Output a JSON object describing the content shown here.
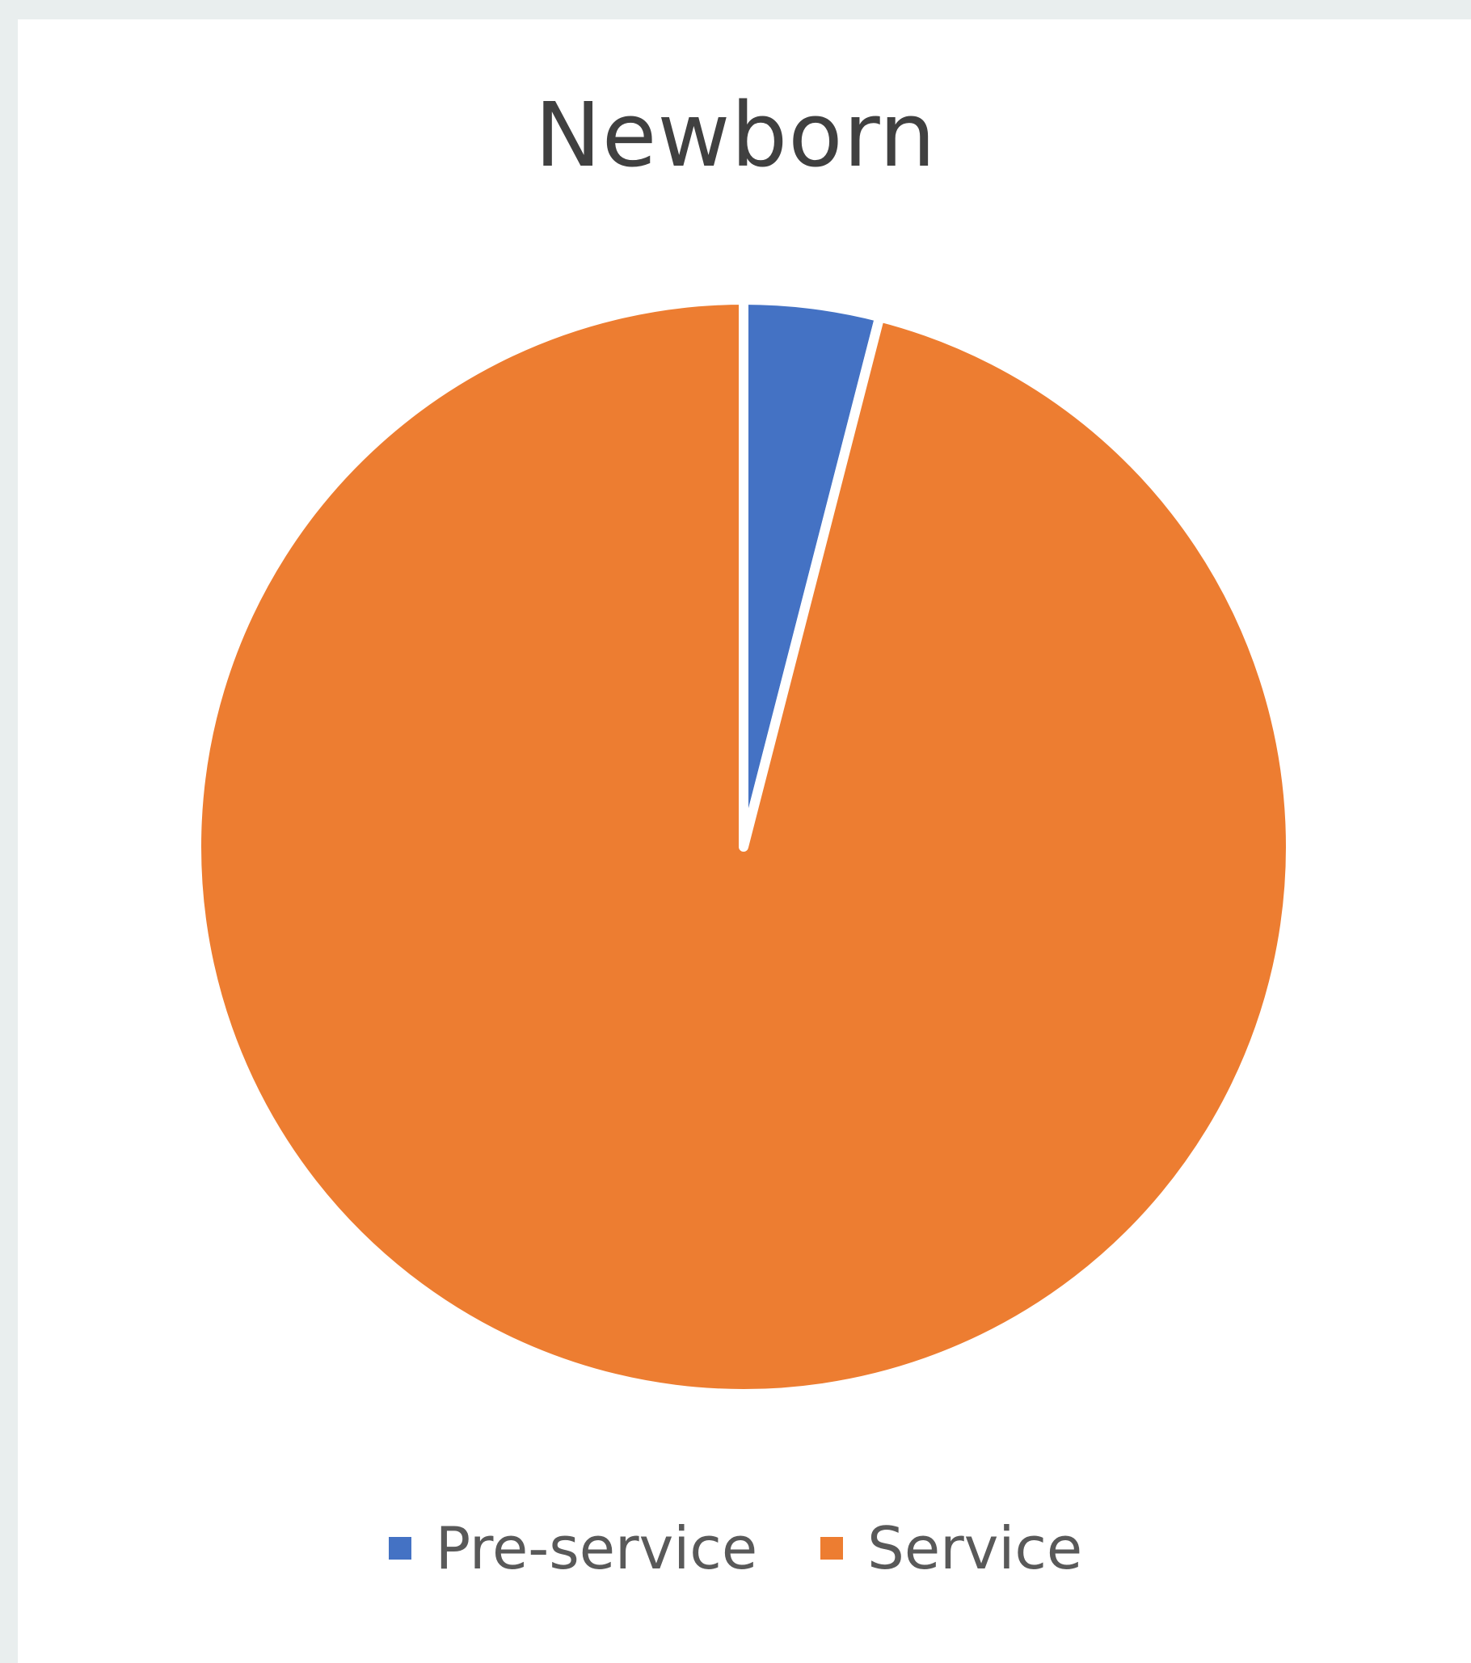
{
  "chart_data": {
    "type": "pie",
    "title": "Newborn",
    "slices": [
      {
        "label": "Pre-service",
        "value": 4,
        "color": "#4472C4"
      },
      {
        "label": "Service",
        "value": 96,
        "color": "#ED7D31"
      }
    ],
    "start_angle": "12 o'clock",
    "direction": "clockwise",
    "legend_position": "bottom"
  }
}
